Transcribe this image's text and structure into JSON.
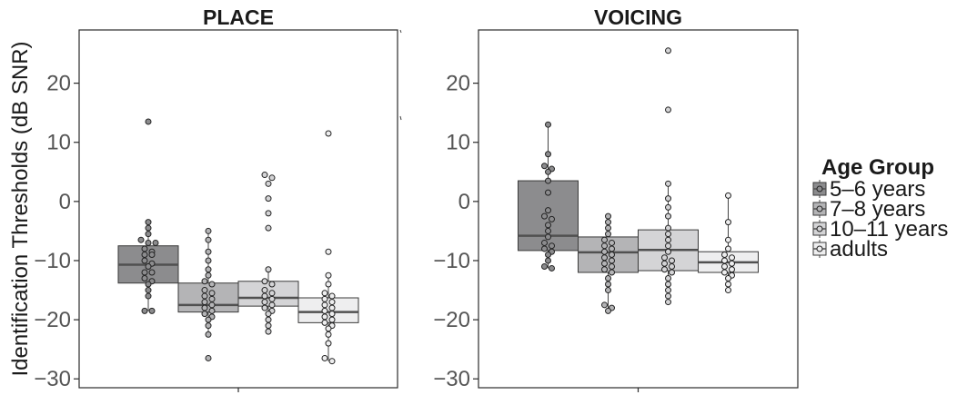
{
  "chart_data": {
    "type": "box",
    "ylabel": "Identification Thresholds (dB SNR)",
    "ylim": [
      -31.5,
      29
    ],
    "yticks": [
      -30,
      -20,
      -10,
      0,
      10,
      20
    ],
    "grid": false,
    "legend": {
      "title": "Age Group",
      "placement": "right",
      "entries": [
        "5–6 years",
        "7–8 years",
        "10–11 years",
        "adults"
      ]
    },
    "group_colors": [
      "#8c8c8e",
      "#b4b4b6",
      "#d4d4d6",
      "#eeeeef"
    ],
    "panels": [
      {
        "title": "PLACE",
        "groups": [
          {
            "name": "5–6 years",
            "q1": -13.8,
            "median": -10.7,
            "q3": -7.5,
            "whisker_low": -18.5,
            "whisker_high": -3.5,
            "points": [
              13.5,
              -3.5,
              -4.5,
              -5.5,
              -6.5,
              -7,
              -7,
              -8,
              -8.5,
              -9,
              -9,
              -10,
              -10.5,
              -11,
              -12,
              -12,
              -13,
              -13.5,
              -14,
              -15,
              -16,
              -18.5,
              -18.5
            ]
          },
          {
            "name": "7–8 years",
            "q1": -18.7,
            "median": -17.5,
            "q3": -13.8,
            "whisker_low": -22.5,
            "whisker_high": -5,
            "points": [
              -5,
              -6.5,
              -8.5,
              -10,
              -11.5,
              -12.5,
              -13.5,
              -14,
              -15,
              -15.5,
              -16,
              -16.5,
              -17,
              -17.5,
              -18,
              -18.5,
              -19,
              -19.5,
              -20,
              -21,
              -22.5,
              -26.5
            ]
          },
          {
            "name": "10–11 years",
            "q1": -17.7,
            "median": -16.3,
            "q3": -13.5,
            "whisker_low": -22,
            "whisker_high": -11.5,
            "points": [
              4.5,
              4,
              3,
              0.5,
              -2,
              -4.5,
              -11.5,
              -13.5,
              -14,
              -15,
              -15.5,
              -16,
              -16.5,
              -17,
              -17.5,
              -18,
              -18.5,
              -19,
              -20,
              -21,
              -22
            ]
          },
          {
            "name": "adults",
            "q1": -20.5,
            "median": -18.7,
            "q3": -16.3,
            "whisker_low": -27,
            "whisker_high": -12.5,
            "points": [
              11.5,
              -8.5,
              -12.5,
              -14,
              -15.5,
              -16,
              -16.5,
              -17,
              -17.5,
              -18,
              -18.5,
              -19,
              -19.5,
              -20,
              -20.5,
              -21,
              -21.5,
              -22.5,
              -24,
              -26.5,
              -27
            ]
          }
        ]
      },
      {
        "title": "VOICING",
        "groups": [
          {
            "name": "5–6 years",
            "q1": -8.3,
            "median": -5.8,
            "q3": 3.5,
            "whisker_low": -11.3,
            "whisker_high": 13,
            "points": [
              13,
              8,
              6,
              5.5,
              5,
              3.5,
              1.5,
              -1.5,
              -2.5,
              -3,
              -4,
              -5,
              -6,
              -7,
              -7.5,
              -8,
              -8.5,
              -9,
              -10,
              -11,
              -11.3
            ]
          },
          {
            "name": "7–8 years",
            "q1": -12,
            "median": -8.6,
            "q3": -6,
            "whisker_low": -18.5,
            "whisker_high": -2.5,
            "points": [
              -2.5,
              -3.5,
              -4.5,
              -5.5,
              -6.5,
              -7,
              -7.5,
              -8,
              -8.5,
              -9,
              -9.5,
              -10,
              -10.5,
              -11,
              -11.5,
              -12,
              -13,
              -14,
              -15,
              -17.5,
              -18,
              -18.5
            ]
          },
          {
            "name": "10–11 years",
            "q1": -11.7,
            "median": -8.2,
            "q3": -4.8,
            "whisker_low": -17,
            "whisker_high": 3,
            "points": [
              25.5,
              15.5,
              3,
              0.5,
              -1,
              -2.5,
              -4.5,
              -5.5,
              -6.5,
              -7.5,
              -8.5,
              -9.5,
              -10,
              -10.5,
              -11,
              -11.5,
              -12,
              -13,
              -14,
              -15,
              -16,
              -17
            ]
          },
          {
            "name": "adults",
            "q1": -12,
            "median": -10.3,
            "q3": -8.5,
            "whisker_low": -15,
            "whisker_high": 1,
            "points": [
              1,
              -3.5,
              -6.5,
              -8,
              -9,
              -9.5,
              -10,
              -10.5,
              -11,
              -11.5,
              -12,
              -12.5,
              -13,
              -14,
              -15
            ]
          }
        ]
      }
    ]
  }
}
